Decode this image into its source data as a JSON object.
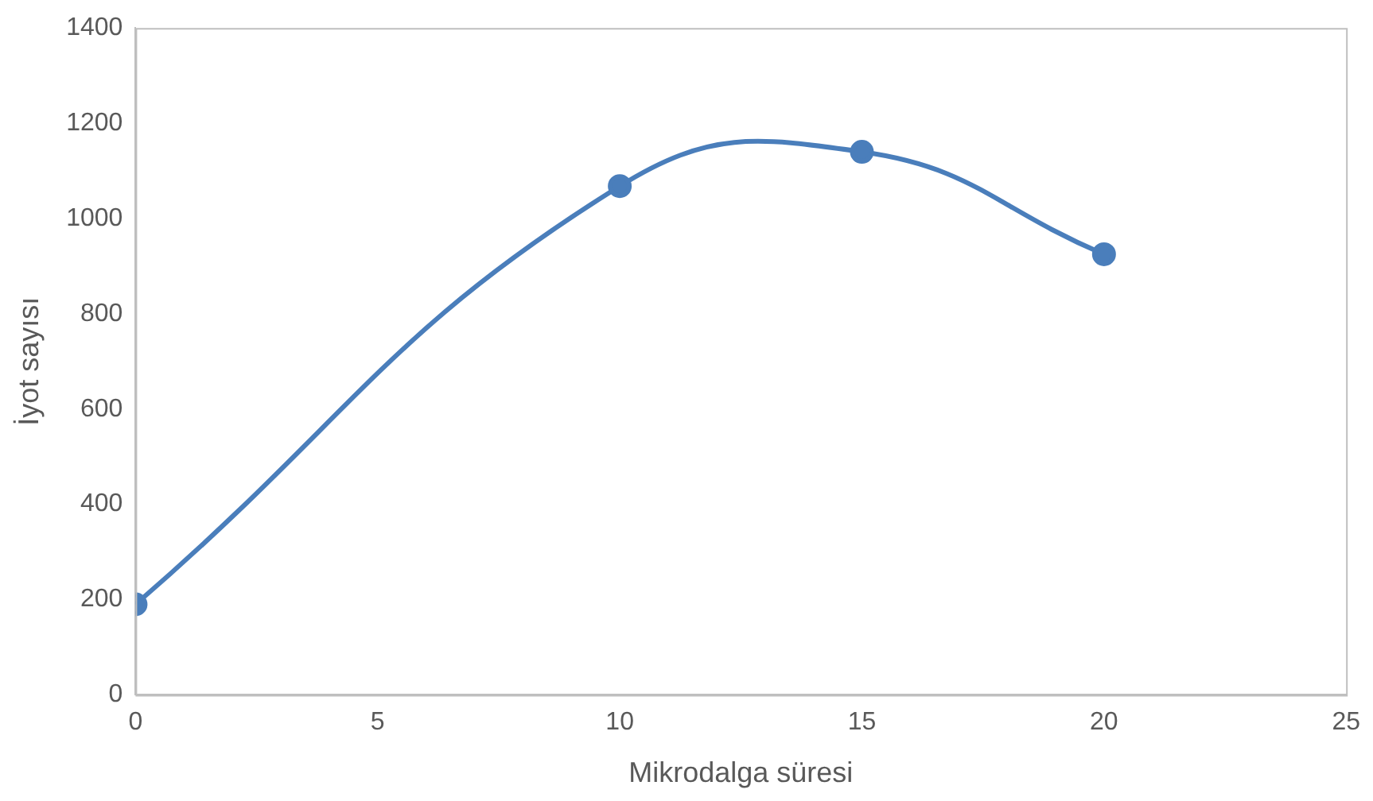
{
  "chart_data": {
    "type": "line",
    "xlabel": "Mikrodalga süresi",
    "ylabel": "İyot sayısı",
    "x": [
      0,
      10,
      15,
      20
    ],
    "series": [
      {
        "color": "#4a7ebb",
        "values": [
          190,
          1068,
          1140,
          925
        ]
      }
    ],
    "xlim": [
      0,
      25
    ],
    "xticks": [
      0,
      5,
      10,
      15,
      20,
      25
    ],
    "ylim": [
      0,
      1400
    ],
    "yticks": [
      0,
      200,
      400,
      600,
      800,
      1000,
      1200,
      1400
    ],
    "grid": false,
    "legend": false,
    "marker": "circle",
    "line_style": "solid"
  }
}
